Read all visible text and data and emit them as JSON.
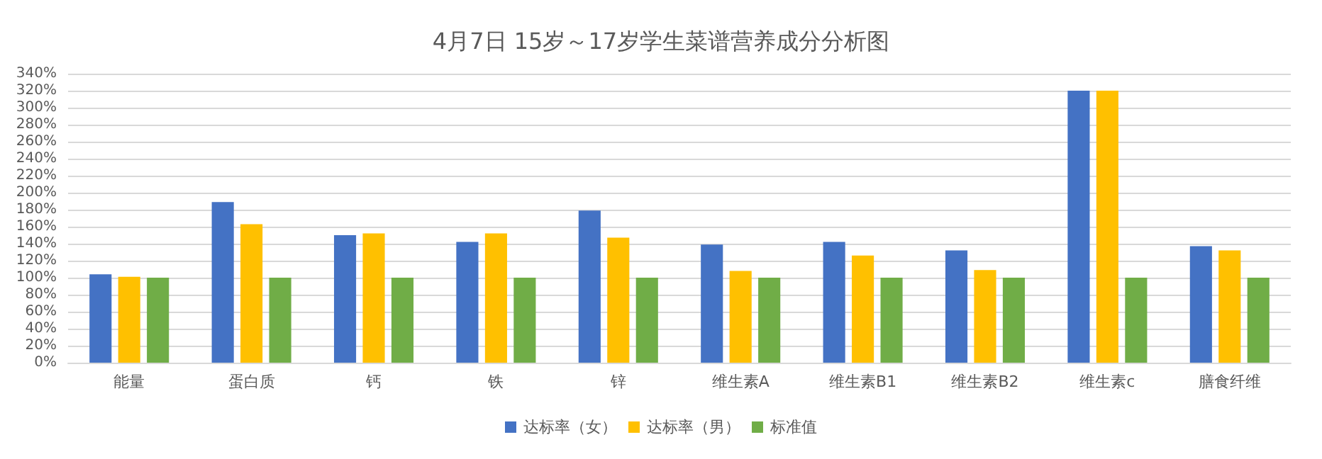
{
  "chart_data": {
    "type": "bar",
    "title": "4月7日 15岁～17岁学生菜谱营养成分分析图",
    "categories": [
      "能量",
      "蛋白质",
      "钙",
      "铁",
      "锌",
      "维生素A",
      "维生素B1",
      "维生素B2",
      "维生素c",
      "膳食纤维"
    ],
    "series": [
      {
        "name": "达标率（女）",
        "color": "#4472c4",
        "values": [
          104,
          189,
          150,
          142,
          179,
          139,
          142,
          132,
          320,
          137
        ]
      },
      {
        "name": "达标率（男）",
        "color": "#ffc000",
        "values": [
          101,
          163,
          152,
          152,
          147,
          108,
          126,
          109,
          320,
          132
        ]
      },
      {
        "name": "标准值",
        "color": "#70ad47",
        "values": [
          100,
          100,
          100,
          100,
          100,
          100,
          100,
          100,
          100,
          100
        ]
      }
    ],
    "ylim": [
      0,
      340
    ],
    "yticks": [
      {
        "value": 0,
        "label": "0%"
      },
      {
        "value": 20,
        "label": "20%"
      },
      {
        "value": 40,
        "label": "40%"
      },
      {
        "value": 60,
        "label": "60%"
      },
      {
        "value": 80,
        "label": "80%"
      },
      {
        "value": 100,
        "label": "100%"
      },
      {
        "value": 120,
        "label": "120%"
      },
      {
        "value": 140,
        "label": "140%"
      },
      {
        "value": 160,
        "label": "160%"
      },
      {
        "value": 180,
        "label": "180%"
      },
      {
        "value": 200,
        "label": "200%"
      },
      {
        "value": 220,
        "label": "220%"
      },
      {
        "value": 240,
        "label": "240%"
      },
      {
        "value": 260,
        "label": "260%"
      },
      {
        "value": 280,
        "label": "280%"
      },
      {
        "value": 300,
        "label": "300%"
      },
      {
        "value": 320,
        "label": "320%"
      },
      {
        "value": 340,
        "label": "340%"
      }
    ],
    "grid": "y",
    "legend": "bottom"
  }
}
